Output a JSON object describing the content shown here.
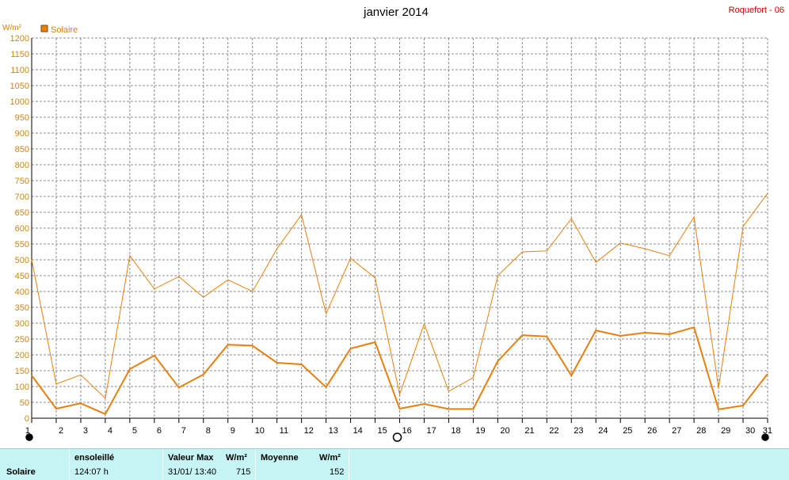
{
  "header": {
    "title": "janvier 2014",
    "station": "Roquefort - 06"
  },
  "colors": {
    "series": "#e8800e",
    "axis_text": "#d4850a",
    "station": "#cc0000",
    "stats_bg": "#c6f4f4"
  },
  "chart_data": {
    "type": "line",
    "ylabel": "W/m²",
    "ylim": [
      0,
      1200
    ],
    "ystep": 50,
    "grid": true,
    "legend_position": "top-left",
    "x": [
      1,
      2,
      3,
      4,
      5,
      6,
      7,
      8,
      9,
      10,
      11,
      12,
      13,
      14,
      15,
      16,
      17,
      18,
      19,
      20,
      21,
      22,
      23,
      24,
      25,
      26,
      27,
      28,
      29,
      30,
      31
    ],
    "series": [
      {
        "name": "Solaire",
        "role": "average",
        "values": [
          135,
          30,
          47,
          13,
          155,
          198,
          97,
          138,
          232,
          229,
          175,
          170,
          98,
          220,
          240,
          30,
          45,
          29,
          29,
          180,
          262,
          258,
          135,
          277,
          260,
          270,
          265,
          287,
          28,
          40,
          140
        ]
      },
      {
        "role": "maximum",
        "values": [
          500,
          108,
          137,
          63,
          513,
          408,
          447,
          382,
          437,
          400,
          535,
          642,
          330,
          505,
          443,
          75,
          298,
          85,
          128,
          450,
          525,
          528,
          630,
          492,
          553,
          535,
          513,
          635,
          95,
          605,
          710
        ]
      }
    ],
    "markers": [
      {
        "x": 1,
        "symbol": "filled-circle"
      },
      {
        "x": 16,
        "symbol": "open-circle"
      },
      {
        "x": 31,
        "symbol": "filled-circle"
      }
    ]
  },
  "stats": {
    "row_label": "Solaire",
    "sunshine": {
      "label": "ensoleillé",
      "value": "124:07 h"
    },
    "max": {
      "label": "Valeur Max",
      "unit": "W/m²",
      "date": "31/01/ 13:40",
      "value": "715"
    },
    "mean": {
      "label": "Moyenne",
      "unit": "W/m²",
      "value": "152"
    }
  }
}
